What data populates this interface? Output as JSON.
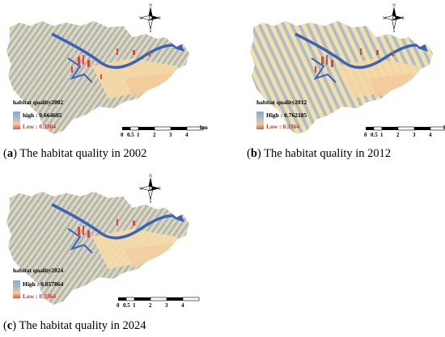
{
  "panels": [
    {
      "letter": "a",
      "caption": "The habitat quality in 2002",
      "legend_title": "habitat quality2002",
      "high_label": "high : 0.664685",
      "low_label": "Low : 0.3364"
    },
    {
      "letter": "b",
      "caption": "The habitat quality in 2012",
      "legend_title": "habitat quality2012",
      "high_label": "High : 0.762185",
      "low_label": "Low : 0.3364"
    },
    {
      "letter": "c",
      "caption": "The habitat quality in 2024",
      "legend_title": "habitat quality2024",
      "high_label": "High : 0.857864",
      "low_label": "Low : 0.3364"
    }
  ],
  "compass": {
    "n": "N",
    "s": "S",
    "e": "E",
    "w": "W"
  },
  "scale": {
    "ticks": [
      "0",
      "0.5",
      "1",
      "2",
      "3",
      "4"
    ],
    "unit": "km"
  },
  "colors": {
    "high": "#8fa9c8",
    "mid": "#f2e3b8",
    "low": "#e85a3a",
    "river": "#3a63b8"
  }
}
